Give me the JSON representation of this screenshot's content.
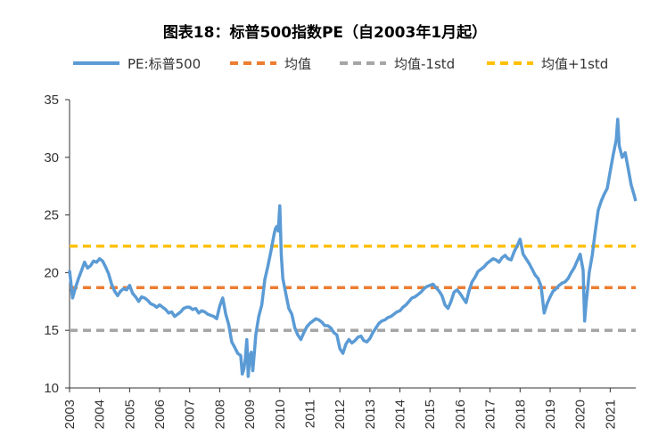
{
  "chart_data": {
    "type": "line",
    "title": "图表18：标普500指数PE（自2003年1月起）",
    "xlabel": "",
    "ylabel": "",
    "ylim": [
      10,
      35
    ],
    "yticks": [
      10,
      15,
      20,
      25,
      30,
      35
    ],
    "xlim": [
      2003.0,
      2021.85
    ],
    "xticks": [
      "2003",
      "2004",
      "2005",
      "2006",
      "2007",
      "2008",
      "2009",
      "2010",
      "2011",
      "2012",
      "2013",
      "2014",
      "2015",
      "2016",
      "2017",
      "2018",
      "2019",
      "2020",
      "2021"
    ],
    "grid": false,
    "legend_position": "top",
    "series": [
      {
        "name": "PE:标普500",
        "color": "#5B9BD5",
        "style": "solid",
        "x": [
          2003.0,
          2003.05,
          2003.1,
          2003.2,
          2003.3,
          2003.4,
          2003.5,
          2003.6,
          2003.7,
          2003.8,
          2003.9,
          2004.0,
          2004.1,
          2004.2,
          2004.3,
          2004.4,
          2004.5,
          2004.6,
          2004.7,
          2004.8,
          2004.9,
          2005.0,
          2005.1,
          2005.2,
          2005.3,
          2005.4,
          2005.5,
          2005.6,
          2005.7,
          2005.8,
          2005.9,
          2006.0,
          2006.1,
          2006.2,
          2006.3,
          2006.4,
          2006.5,
          2006.6,
          2006.7,
          2006.8,
          2006.9,
          2007.0,
          2007.1,
          2007.2,
          2007.3,
          2007.4,
          2007.5,
          2007.6,
          2007.7,
          2007.8,
          2007.9,
          2008.0,
          2008.1,
          2008.2,
          2008.3,
          2008.4,
          2008.5,
          2008.6,
          2008.7,
          2008.75,
          2008.8,
          2008.85,
          2008.9,
          2008.95,
          2009.0,
          2009.05,
          2009.1,
          2009.15,
          2009.2,
          2009.25,
          2009.3,
          2009.4,
          2009.5,
          2009.6,
          2009.7,
          2009.8,
          2009.85,
          2009.9,
          2009.95,
          2010.0,
          2010.05,
          2010.1,
          2010.2,
          2010.3,
          2010.4,
          2010.5,
          2010.6,
          2010.7,
          2010.8,
          2010.9,
          2011.0,
          2011.1,
          2011.2,
          2011.3,
          2011.4,
          2011.5,
          2011.6,
          2011.7,
          2011.8,
          2011.9,
          2012.0,
          2012.1,
          2012.2,
          2012.3,
          2012.4,
          2012.5,
          2012.6,
          2012.7,
          2012.8,
          2012.9,
          2013.0,
          2013.1,
          2013.2,
          2013.3,
          2013.4,
          2013.5,
          2013.6,
          2013.7,
          2013.8,
          2013.9,
          2014.0,
          2014.1,
          2014.2,
          2014.3,
          2014.4,
          2014.5,
          2014.6,
          2014.7,
          2014.8,
          2014.9,
          2015.0,
          2015.1,
          2015.2,
          2015.3,
          2015.4,
          2015.5,
          2015.6,
          2015.7,
          2015.8,
          2015.9,
          2016.0,
          2016.1,
          2016.2,
          2016.3,
          2016.4,
          2016.5,
          2016.6,
          2016.7,
          2016.8,
          2016.9,
          2017.0,
          2017.1,
          2017.2,
          2017.3,
          2017.4,
          2017.5,
          2017.6,
          2017.7,
          2017.8,
          2017.9,
          2018.0,
          2018.1,
          2018.2,
          2018.3,
          2018.4,
          2018.5,
          2018.6,
          2018.7,
          2018.8,
          2018.9,
          2019.0,
          2019.1,
          2019.2,
          2019.3,
          2019.4,
          2019.5,
          2019.6,
          2019.7,
          2019.8,
          2019.9,
          2020.0,
          2020.1,
          2020.15,
          2020.2,
          2020.25,
          2020.3,
          2020.4,
          2020.5,
          2020.6,
          2020.7,
          2020.8,
          2020.9,
          2021.0,
          2021.1,
          2021.2,
          2021.25,
          2021.3,
          2021.4,
          2021.5,
          2021.6,
          2021.7,
          2021.8,
          2021.85
        ],
        "y": [
          20.2,
          19.0,
          17.8,
          18.7,
          19.5,
          20.2,
          20.9,
          20.4,
          20.6,
          21.0,
          20.9,
          21.2,
          21.0,
          20.5,
          19.9,
          19.0,
          18.4,
          18.0,
          18.4,
          18.6,
          18.5,
          18.9,
          18.2,
          17.9,
          17.5,
          17.9,
          17.8,
          17.6,
          17.3,
          17.2,
          17.0,
          17.2,
          17.0,
          16.8,
          16.5,
          16.6,
          16.2,
          16.4,
          16.6,
          16.9,
          17.0,
          17.0,
          16.8,
          16.9,
          16.5,
          16.7,
          16.6,
          16.4,
          16.3,
          16.2,
          16.0,
          17.1,
          17.8,
          16.4,
          15.5,
          14.0,
          13.5,
          13.0,
          12.8,
          11.2,
          11.6,
          12.5,
          14.2,
          11.0,
          12.8,
          13.1,
          11.5,
          13.0,
          14.6,
          15.4,
          16.2,
          17.2,
          19.4,
          20.5,
          21.8,
          23.2,
          23.8,
          24.0,
          23.6,
          25.8,
          21.5,
          19.5,
          18.2,
          16.9,
          16.4,
          15.2,
          14.6,
          14.2,
          14.8,
          15.3,
          15.6,
          15.8,
          16.0,
          15.9,
          15.7,
          15.4,
          15.4,
          15.2,
          14.8,
          14.6,
          13.4,
          13.0,
          13.8,
          14.2,
          13.9,
          14.1,
          14.4,
          14.5,
          14.1,
          14.0,
          14.3,
          14.8,
          15.2,
          15.6,
          15.8,
          15.9,
          16.1,
          16.2,
          16.4,
          16.6,
          16.7,
          17.0,
          17.2,
          17.5,
          17.8,
          17.9,
          18.1,
          18.3,
          18.6,
          18.8,
          18.9,
          19.0,
          18.7,
          18.4,
          18.0,
          17.2,
          16.9,
          17.5,
          18.3,
          18.5,
          18.2,
          17.8,
          17.4,
          18.4,
          19.2,
          19.6,
          20.1,
          20.3,
          20.5,
          20.8,
          21.0,
          21.2,
          21.1,
          20.9,
          21.3,
          21.5,
          21.2,
          21.1,
          21.8,
          22.3,
          22.9,
          21.6,
          21.2,
          20.8,
          20.3,
          19.8,
          19.5,
          18.8,
          16.5,
          17.3,
          17.9,
          18.4,
          18.6,
          18.9,
          19.1,
          19.2,
          19.5,
          20.0,
          20.4,
          21.0,
          21.6,
          20.2,
          15.8,
          17.4,
          18.6,
          20.0,
          21.5,
          23.5,
          25.4,
          26.2,
          26.8,
          27.3,
          28.8,
          30.2,
          31.5,
          33.3,
          31.0,
          30.0,
          30.4,
          29.0,
          27.6,
          26.7,
          26.2
        ]
      },
      {
        "name": "均值",
        "color": "#ED7D31",
        "style": "dashed",
        "value": 18.7
      },
      {
        "name": "均值-1std",
        "color": "#A5A5A5",
        "style": "dashed",
        "value": 15.0
      },
      {
        "name": "均值+1std",
        "color": "#FFC000",
        "style": "dashed",
        "value": 22.3
      }
    ]
  }
}
